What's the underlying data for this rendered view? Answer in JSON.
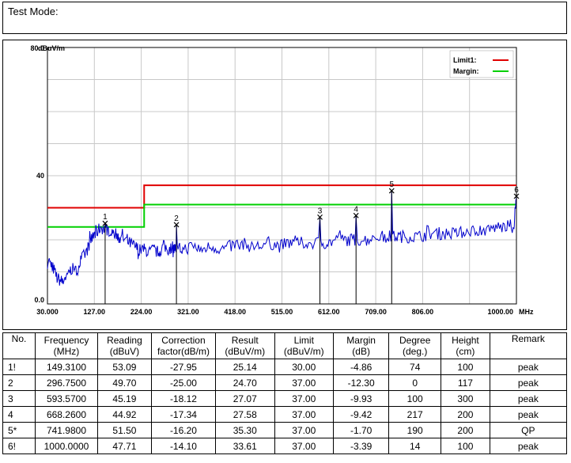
{
  "test_mode_label": "Test Mode:",
  "chart_data": {
    "type": "line",
    "y_unit": "dBuV/m",
    "x_unit": "MHz",
    "ylim": [
      0,
      80
    ],
    "xlim": [
      30,
      1000
    ],
    "y_ticks": [
      "80.0",
      "40",
      "0.0"
    ],
    "x_ticks": [
      "30.000",
      "127.00",
      "224.00",
      "321.00",
      "418.00",
      "515.00",
      "612.00",
      "709.00",
      "806.00",
      "1000.00"
    ],
    "grid": true,
    "legend": [
      {
        "name": "Limit1:",
        "color": "#e00000"
      },
      {
        "name": "Margin:",
        "color": "#00d000"
      }
    ],
    "limit_line": {
      "color": "#e00000",
      "segments": [
        [
          30,
          230,
          30.0
        ],
        [
          230,
          1000,
          37.0
        ]
      ]
    },
    "margin_line": {
      "color": "#00d000",
      "segments": [
        [
          30,
          230,
          24.0
        ],
        [
          230,
          1000,
          31.0
        ]
      ]
    },
    "trace_color": "#0000cc",
    "trace": {
      "f": [
        30,
        40,
        50,
        60,
        70,
        80,
        90,
        100,
        110,
        120,
        130,
        140,
        149.31,
        160,
        170,
        180,
        190,
        200,
        210,
        220,
        230,
        240,
        250,
        260,
        270,
        280,
        290,
        296.75,
        310,
        330,
        350,
        370,
        390,
        410,
        430,
        450,
        470,
        490,
        510,
        530,
        550,
        570,
        593.57,
        610,
        630,
        650,
        668.26,
        690,
        710,
        730,
        741.98,
        760,
        780,
        800,
        820,
        840,
        860,
        880,
        900,
        920,
        940,
        960,
        980,
        995,
        1000
      ],
      "level": [
        14,
        12,
        8,
        7,
        9,
        11,
        10,
        14,
        16,
        20,
        22,
        24,
        25.1,
        23,
        22,
        21,
        20,
        19,
        18,
        17,
        17,
        16,
        17,
        16,
        18,
        17,
        18,
        24.7,
        17,
        18,
        17,
        18,
        17,
        18,
        19,
        18,
        18,
        19,
        18,
        19,
        19,
        19,
        27.1,
        19,
        20,
        20,
        27.6,
        20,
        21,
        21,
        35.3,
        21,
        21,
        21,
        22,
        22,
        22,
        22,
        23,
        23,
        23,
        24,
        24,
        25,
        33.6
      ]
    },
    "markers": [
      {
        "label": "1",
        "f": 149.31,
        "level": 25.14
      },
      {
        "label": "2",
        "f": 296.75,
        "level": 24.7
      },
      {
        "label": "3",
        "f": 593.57,
        "level": 27.07
      },
      {
        "label": "4",
        "f": 668.26,
        "level": 27.58
      },
      {
        "label": "5",
        "f": 741.98,
        "level": 35.3
      },
      {
        "label": "6",
        "f": 1000.0,
        "level": 33.61
      }
    ]
  },
  "table": {
    "headers": [
      [
        "No.",
        ""
      ],
      [
        "Frequency",
        "(MHz)"
      ],
      [
        "Reading",
        "(dBuV)"
      ],
      [
        "Correction",
        "factor(dB/m)"
      ],
      [
        "Result",
        "(dBuV/m)"
      ],
      [
        "Limit",
        "(dBuV/m)"
      ],
      [
        "Margin",
        "(dB)"
      ],
      [
        "Degree",
        "(deg.)"
      ],
      [
        "Height",
        "(cm)"
      ],
      [
        "Remark",
        ""
      ]
    ],
    "rows": [
      [
        "1!",
        "149.3100",
        "53.09",
        "-27.95",
        "25.14",
        "30.00",
        "-4.86",
        "74",
        "100",
        "peak"
      ],
      [
        "2",
        "296.7500",
        "49.70",
        "-25.00",
        "24.70",
        "37.00",
        "-12.30",
        "0",
        "117",
        "peak"
      ],
      [
        "3",
        "593.5700",
        "45.19",
        "-18.12",
        "27.07",
        "37.00",
        "-9.93",
        "100",
        "300",
        "peak"
      ],
      [
        "4",
        "668.2600",
        "44.92",
        "-17.34",
        "27.58",
        "37.00",
        "-9.42",
        "217",
        "200",
        "peak"
      ],
      [
        "5*",
        "741.9800",
        "51.50",
        "-16.20",
        "35.30",
        "37.00",
        "-1.70",
        "190",
        "200",
        "QP"
      ],
      [
        "6!",
        "1000.0000",
        "47.71",
        "-14.10",
        "33.61",
        "37.00",
        "-3.39",
        "14",
        "100",
        "peak"
      ]
    ]
  }
}
